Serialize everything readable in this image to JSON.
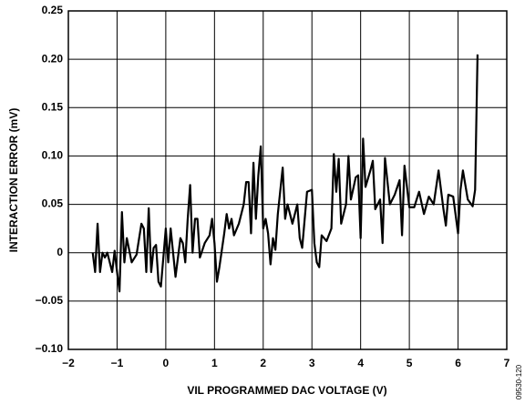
{
  "chart_data": {
    "type": "line",
    "xlabel": "VIL PROGRAMMED DAC VOLTAGE (V)",
    "ylabel": "INTERACTION ERROR (mV)",
    "note": "09530-120",
    "xlim": [
      -2,
      7
    ],
    "ylim": [
      -0.1,
      0.25
    ],
    "xticks": [
      {
        "value": -2,
        "label": "−2"
      },
      {
        "value": -1,
        "label": "−1"
      },
      0,
      1,
      2,
      3,
      4,
      5,
      6,
      7
    ],
    "yticks": [
      {
        "value": -0.1,
        "label": "−0.10"
      },
      {
        "value": -0.05,
        "label": "−0.05"
      },
      0,
      {
        "value": 0.05,
        "label": "0.05"
      },
      {
        "value": 0.1,
        "label": "0.10"
      },
      {
        "value": 0.15,
        "label": "0.15"
      },
      {
        "value": 0.2,
        "label": "0.20"
      },
      {
        "value": 0.25,
        "label": "0.25"
      }
    ],
    "grid": true,
    "color": "#000000",
    "x": [
      -1.5,
      -1.45,
      -1.4,
      -1.35,
      -1.3,
      -1.25,
      -1.2,
      -1.1,
      -1.05,
      -1.0,
      -0.95,
      -0.9,
      -0.85,
      -0.8,
      -0.7,
      -0.6,
      -0.5,
      -0.45,
      -0.4,
      -0.35,
      -0.3,
      -0.25,
      -0.2,
      -0.15,
      -0.1,
      0.0,
      0.05,
      0.1,
      0.2,
      0.3,
      0.35,
      0.4,
      0.45,
      0.5,
      0.55,
      0.6,
      0.65,
      0.7,
      0.8,
      0.9,
      0.95,
      1.0,
      1.05,
      1.1,
      1.2,
      1.25,
      1.3,
      1.35,
      1.4,
      1.5,
      1.6,
      1.65,
      1.7,
      1.75,
      1.8,
      1.85,
      1.9,
      1.95,
      2.0,
      2.05,
      2.1,
      2.15,
      2.2,
      2.25,
      2.3,
      2.4,
      2.45,
      2.5,
      2.6,
      2.7,
      2.75,
      2.8,
      2.9,
      3.0,
      3.05,
      3.1,
      3.15,
      3.2,
      3.3,
      3.4,
      3.45,
      3.5,
      3.55,
      3.6,
      3.7,
      3.75,
      3.8,
      3.9,
      3.95,
      4.0,
      4.05,
      4.1,
      4.2,
      4.25,
      4.3,
      4.4,
      4.45,
      4.5,
      4.6,
      4.7,
      4.8,
      4.85,
      4.9,
      5.0,
      5.1,
      5.2,
      5.3,
      5.4,
      5.5,
      5.6,
      5.7,
      5.75,
      5.8,
      5.9,
      6.0,
      6.05,
      6.1,
      6.2,
      6.3,
      6.35,
      6.4
    ],
    "values": [
      0,
      -0.02,
      0.03,
      -0.02,
      0,
      -0.005,
      0,
      -0.02,
      0.002,
      -0.02,
      -0.04,
      0.042,
      -0.01,
      0.015,
      -0.01,
      -0.002,
      0.03,
      0.025,
      -0.02,
      0.046,
      -0.02,
      0.005,
      0.008,
      -0.03,
      -0.035,
      0.025,
      -0.01,
      0.025,
      -0.025,
      0.015,
      0.01,
      -0.01,
      0.035,
      0.07,
      0.0,
      0.035,
      0.035,
      -0.005,
      0.01,
      0.018,
      0.035,
      0.01,
      -0.03,
      -0.015,
      0.02,
      0.04,
      0.025,
      0.035,
      0.018,
      0.03,
      0.05,
      0.073,
      0.073,
      0.02,
      0.093,
      0.035,
      0.08,
      0.11,
      0.025,
      0.035,
      0.02,
      -0.012,
      0.015,
      0.003,
      0.04,
      0.088,
      0.035,
      0.05,
      0.03,
      0.05,
      0.015,
      0.005,
      0.063,
      0.065,
      0.01,
      -0.01,
      -0.015,
      0.018,
      0.012,
      0.025,
      0.102,
      0.063,
      0.097,
      0.03,
      0.05,
      0.1,
      0.055,
      0.078,
      0.08,
      0.015,
      0.118,
      0.068,
      0.085,
      0.095,
      0.045,
      0.055,
      0.01,
      0.098,
      0.05,
      0.06,
      0.075,
      0.018,
      0.09,
      0.047,
      0.047,
      0.063,
      0.04,
      0.058,
      0.05,
      0.085,
      0.045,
      0.028,
      0.06,
      0.058,
      0.02,
      0.065,
      0.085,
      0.055,
      0.048,
      0.065,
      0.205
    ]
  }
}
